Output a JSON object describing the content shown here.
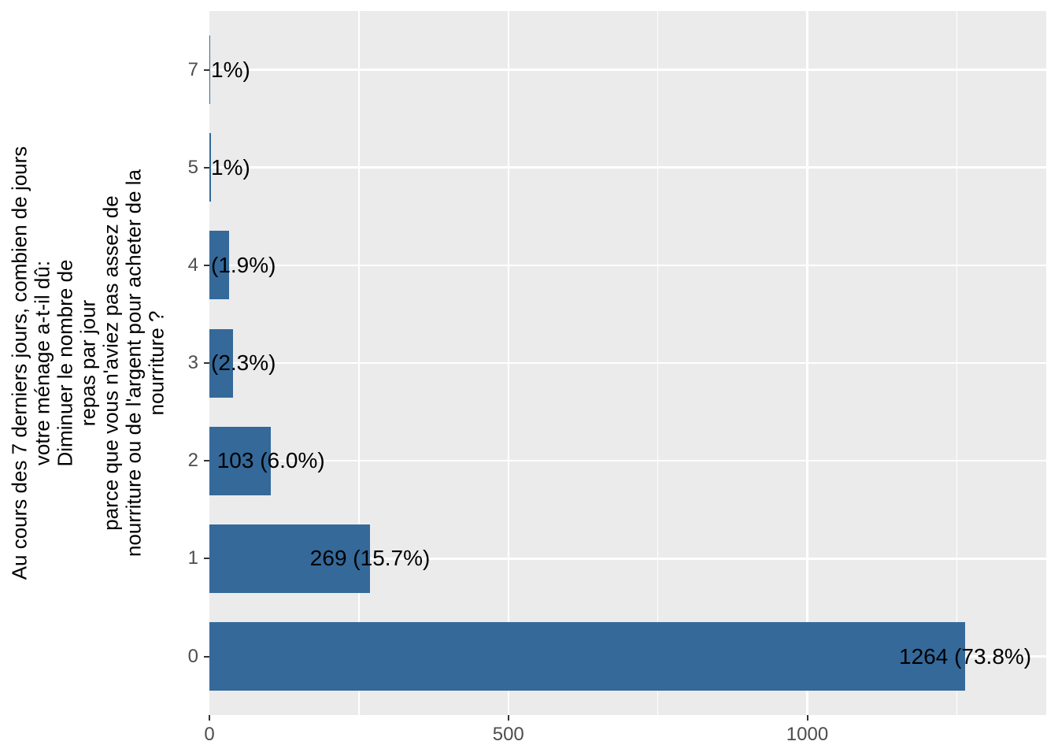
{
  "chart_data": {
    "type": "bar",
    "orientation": "horizontal",
    "title": "",
    "xlabel": "",
    "ylabel": "Au cours des 7 derniers jours, combien de jours\nvotre ménage a-t-il dû:\nDiminuer le nombre de\nrepas par jour\nparce que vous n'aviez pas assez de\nnourriture ou de l'argent pour acheter de la\nnourriture ?",
    "categories": [
      "0",
      "1",
      "2",
      "3",
      "4",
      "5",
      "7"
    ],
    "values": [
      1264,
      269,
      103,
      40,
      33,
      2,
      1
    ],
    "bar_labels": [
      "1264 (73.8%)",
      "269 (15.7%)",
      "103 (6.0%)",
      "(2.3%)",
      "(1.9%)",
      "1%)",
      "1%)"
    ],
    "x_tick_labels": [
      "0",
      "500",
      "1000"
    ],
    "x_tick_values": [
      0,
      500,
      1000
    ],
    "x_minor_values": [
      250,
      750,
      1250
    ],
    "xlim": [
      0,
      1400
    ],
    "grid": true,
    "legend": false,
    "colors": {
      "bar_fill": "#34699A",
      "panel_background": "#EBEBEB",
      "gridline": "#FFFFFF",
      "tick_label": "#4D4D4D",
      "tick_mark": "#333333",
      "bar_label_text": "#000000",
      "axis_title_text": "#000000",
      "figure_background": "#FFFFFF"
    }
  }
}
